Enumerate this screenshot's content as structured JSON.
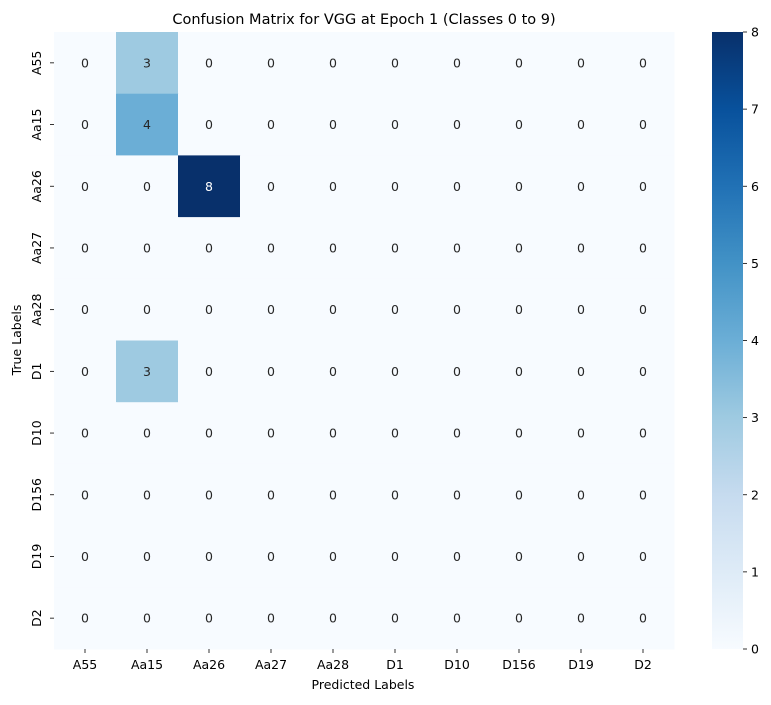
{
  "chart_data": {
    "type": "heatmap",
    "title": "Confusion Matrix for VGG at Epoch 1 (Classes 0 to 9)",
    "xlabel": "Predicted Labels",
    "ylabel": "True Labels",
    "x_categories": [
      "A55",
      "Aa15",
      "Aa26",
      "Aa27",
      "Aa28",
      "D1",
      "D10",
      "D156",
      "D19",
      "D2"
    ],
    "y_categories": [
      "A55",
      "Aa15",
      "Aa26",
      "Aa27",
      "Aa28",
      "D1",
      "D10",
      "D156",
      "D19",
      "D2"
    ],
    "values": [
      [
        0,
        3,
        0,
        0,
        0,
        0,
        0,
        0,
        0,
        0
      ],
      [
        0,
        4,
        0,
        0,
        0,
        0,
        0,
        0,
        0,
        0
      ],
      [
        0,
        0,
        8,
        0,
        0,
        0,
        0,
        0,
        0,
        0
      ],
      [
        0,
        0,
        0,
        0,
        0,
        0,
        0,
        0,
        0,
        0
      ],
      [
        0,
        0,
        0,
        0,
        0,
        0,
        0,
        0,
        0,
        0
      ],
      [
        0,
        3,
        0,
        0,
        0,
        0,
        0,
        0,
        0,
        0
      ],
      [
        0,
        0,
        0,
        0,
        0,
        0,
        0,
        0,
        0,
        0
      ],
      [
        0,
        0,
        0,
        0,
        0,
        0,
        0,
        0,
        0,
        0
      ],
      [
        0,
        0,
        0,
        0,
        0,
        0,
        0,
        0,
        0,
        0
      ],
      [
        0,
        0,
        0,
        0,
        0,
        0,
        0,
        0,
        0,
        0
      ]
    ],
    "colorbar": {
      "min": 0,
      "max": 8,
      "ticks": [
        "0",
        "1",
        "2",
        "3",
        "4",
        "5",
        "6",
        "7",
        "8"
      ],
      "colormap": "Blues",
      "color_stops": [
        "#f7fbff",
        "#deebf7",
        "#c6dbef",
        "#9ecae1",
        "#6baed6",
        "#4292c6",
        "#2171b5",
        "#08519c",
        "#08306b"
      ]
    },
    "annotations": true,
    "grid": false,
    "legend": "colorbar-right"
  }
}
